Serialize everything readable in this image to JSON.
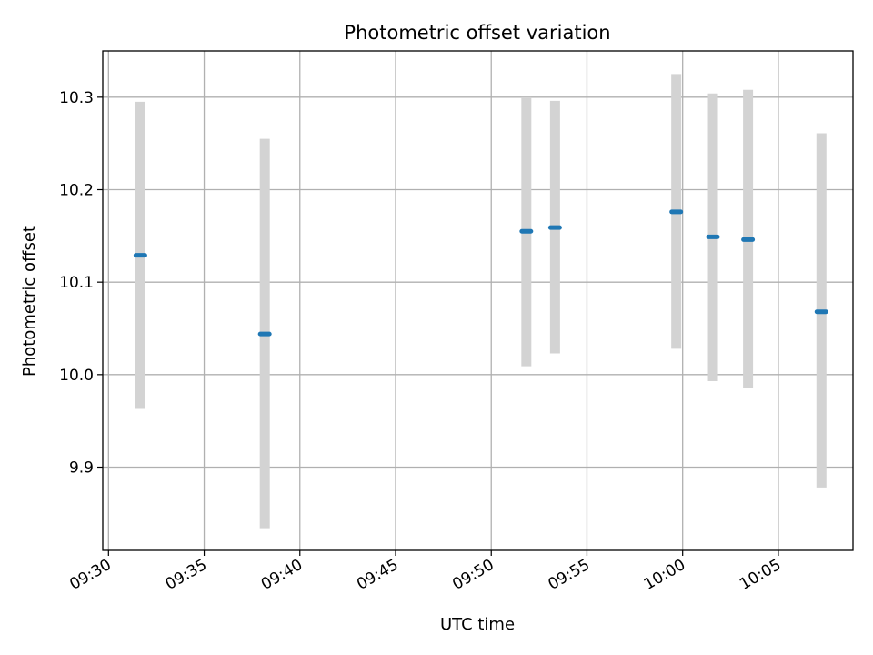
{
  "chart_data": {
    "type": "scatter",
    "title": "Photometric offset variation",
    "xlabel": "UTC time",
    "ylabel": "Photometric offset",
    "x_ticks": [
      "09:30",
      "09:35",
      "09:40",
      "09:45",
      "09:50",
      "09:55",
      "10:00",
      "10:05"
    ],
    "y_ticks": [
      "9.9",
      "10.0",
      "10.1",
      "10.2",
      "10.3"
    ],
    "xlim": [
      "09:29.7",
      "10:08.9"
    ],
    "ylim": [
      9.81,
      10.35
    ],
    "grid": true,
    "points": [
      {
        "x": "09:31:40",
        "y": 10.129,
        "ylow": 9.963,
        "yhigh": 10.295
      },
      {
        "x": "09:38:10",
        "y": 10.044,
        "ylow": 9.834,
        "yhigh": 10.255
      },
      {
        "x": "09:51:50",
        "y": 10.155,
        "ylow": 10.009,
        "yhigh": 10.3
      },
      {
        "x": "09:53:20",
        "y": 10.159,
        "ylow": 10.023,
        "yhigh": 10.296
      },
      {
        "x": "09:59:40",
        "y": 10.176,
        "ylow": 10.028,
        "yhigh": 10.325
      },
      {
        "x": "10:01:35",
        "y": 10.149,
        "ylow": 9.993,
        "yhigh": 10.304
      },
      {
        "x": "10:03:25",
        "y": 10.146,
        "ylow": 9.986,
        "yhigh": 10.308
      },
      {
        "x": "10:07:15",
        "y": 10.068,
        "ylow": 9.878,
        "yhigh": 10.261
      }
    ],
    "colors": {
      "point": "#1f77b4",
      "errorbar": "#d3d3d3",
      "grid": "#b0b0b0"
    }
  }
}
